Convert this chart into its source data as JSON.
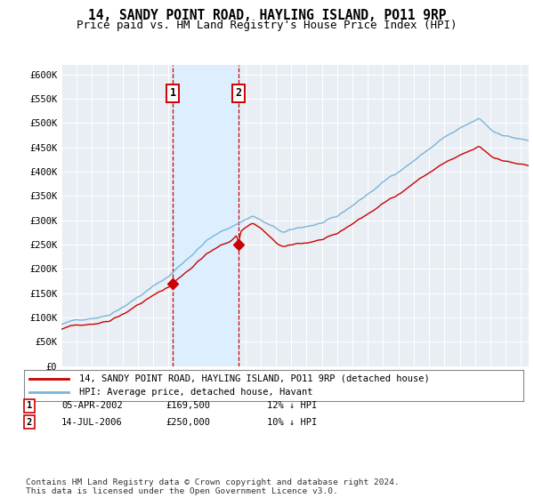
{
  "title": "14, SANDY POINT ROAD, HAYLING ISLAND, PO11 9RP",
  "subtitle": "Price paid vs. HM Land Registry's House Price Index (HPI)",
  "ylim": [
    0,
    620000
  ],
  "yticks": [
    0,
    50000,
    100000,
    150000,
    200000,
    250000,
    300000,
    350000,
    400000,
    450000,
    500000,
    550000,
    600000
  ],
  "ytick_labels": [
    "£0",
    "£50K",
    "£100K",
    "£150K",
    "£200K",
    "£250K",
    "£300K",
    "£350K",
    "£400K",
    "£450K",
    "£500K",
    "£550K",
    "£600K"
  ],
  "hpi_color": "#7ab4d8",
  "price_color": "#cc0000",
  "marker_color": "#cc0000",
  "vline_color": "#cc0000",
  "shade_color": "#ddeeff",
  "background_color": "#e8eef4",
  "grid_color": "#ffffff",
  "transaction1_date": 2002.26,
  "transaction1_price": 169500,
  "transaction2_date": 2006.54,
  "transaction2_price": 250000,
  "legend_label1": "14, SANDY POINT ROAD, HAYLING ISLAND, PO11 9RP (detached house)",
  "legend_label2": "HPI: Average price, detached house, Havant",
  "table_entries": [
    {
      "num": 1,
      "date": "05-APR-2002",
      "price": "£169,500",
      "hpi": "12% ↓ HPI"
    },
    {
      "num": 2,
      "date": "14-JUL-2006",
      "price": "£250,000",
      "hpi": "10% ↓ HPI"
    }
  ],
  "footnote": "Contains HM Land Registry data © Crown copyright and database right 2024.\nThis data is licensed under the Open Government Licence v3.0."
}
